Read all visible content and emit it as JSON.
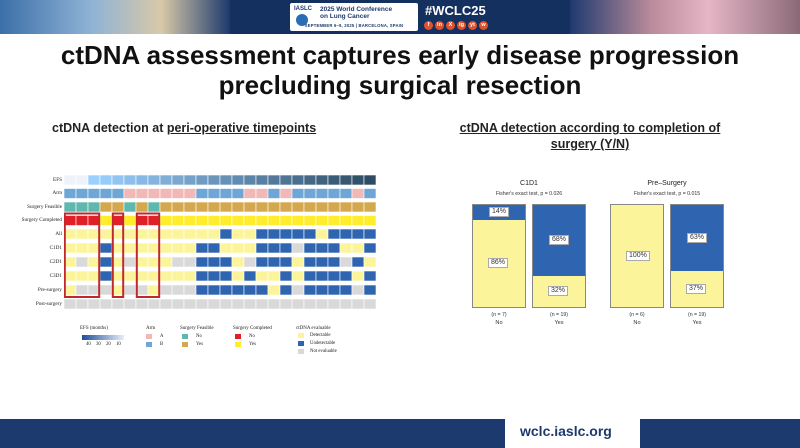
{
  "banner": {
    "conference_name": "2025 World Conference\non Lung Cancer",
    "org": "IASLC",
    "dates": "SEPTEMBER 6–9, 2025 | BARCELONA, SPAIN",
    "hashtag": "#WCLC25",
    "social_icons": [
      "f",
      "in",
      "X",
      "ig",
      "yt",
      "w"
    ]
  },
  "title_line1": "ctDNA assessment captures early disease progression",
  "title_line2": "precluding surgical resection",
  "left_panel": {
    "heading_plain": "ctDNA detection at ",
    "heading_underlined": "peri-operative timepoints",
    "row_labels": [
      "EFS",
      "Arm",
      "Surgery Feasible",
      "Surgery Completed",
      "All",
      "C1D1",
      "C2D1",
      "C3D1",
      "Pre-surgery",
      "Post-surgery"
    ],
    "legend": {
      "efs_title": "EFS (months)",
      "efs_ticks": [
        "40",
        "30",
        "20",
        "10"
      ],
      "arm_title": "Arm",
      "arm_items": [
        "A",
        "B"
      ],
      "feasible_title": "Surgery Feasible",
      "feasible_items": [
        "No",
        "Yes"
      ],
      "completed_title": "Surgery Completed",
      "completed_items": [
        "No",
        "Yes"
      ],
      "ctdna_title": "ctDNA evaluable",
      "ctdna_items": [
        "Detectable",
        "Undetectable",
        "Not evaluable"
      ]
    }
  },
  "right_panel": {
    "heading": "ctDNA detection according to completion of surgery (Y/N)"
  },
  "colors": {
    "detectable": "#fbf49a",
    "undetectable": "#2f64b0",
    "not_evaluable": "#d9d9d9",
    "arm_a": "#f2b8b8",
    "arm_b": "#6ea6d6",
    "feasible_no": "#5fb8ae",
    "feasible_yes": "#d4a84e",
    "completed_no": "#e01f26",
    "completed_yes": "#ffec2a",
    "highlight": "#c0282d"
  },
  "chart_data": [
    {
      "type": "bar",
      "title": "C1D1",
      "subtitle": "Fisher's exact test, p = 0.026",
      "categories": [
        "No",
        "Yes"
      ],
      "counts": [
        "(n = 7)",
        "(n = 19)"
      ],
      "series": [
        {
          "name": "Detectable",
          "values": [
            86,
            32
          ]
        },
        {
          "name": "Undetectable",
          "values": [
            14,
            68
          ]
        }
      ],
      "labels": [
        [
          "86%",
          "14%"
        ],
        [
          "32%",
          "68%"
        ]
      ],
      "ylim": [
        0,
        100
      ]
    },
    {
      "type": "bar",
      "title": "Pre–Surgery",
      "subtitle": "Fisher's exact test, p = 0.015",
      "categories": [
        "No",
        "Yes"
      ],
      "counts": [
        "(n = 6)",
        "(n = 19)"
      ],
      "series": [
        {
          "name": "Detectable",
          "values": [
            100,
            37
          ]
        },
        {
          "name": "Undetectable",
          "values": [
            0,
            63
          ]
        }
      ],
      "labels": [
        [
          "100%",
          ""
        ],
        [
          "37%",
          "63%"
        ]
      ],
      "ylim": [
        0,
        100
      ]
    }
  ],
  "footer": {
    "url": "wclc.iaslc.org"
  }
}
